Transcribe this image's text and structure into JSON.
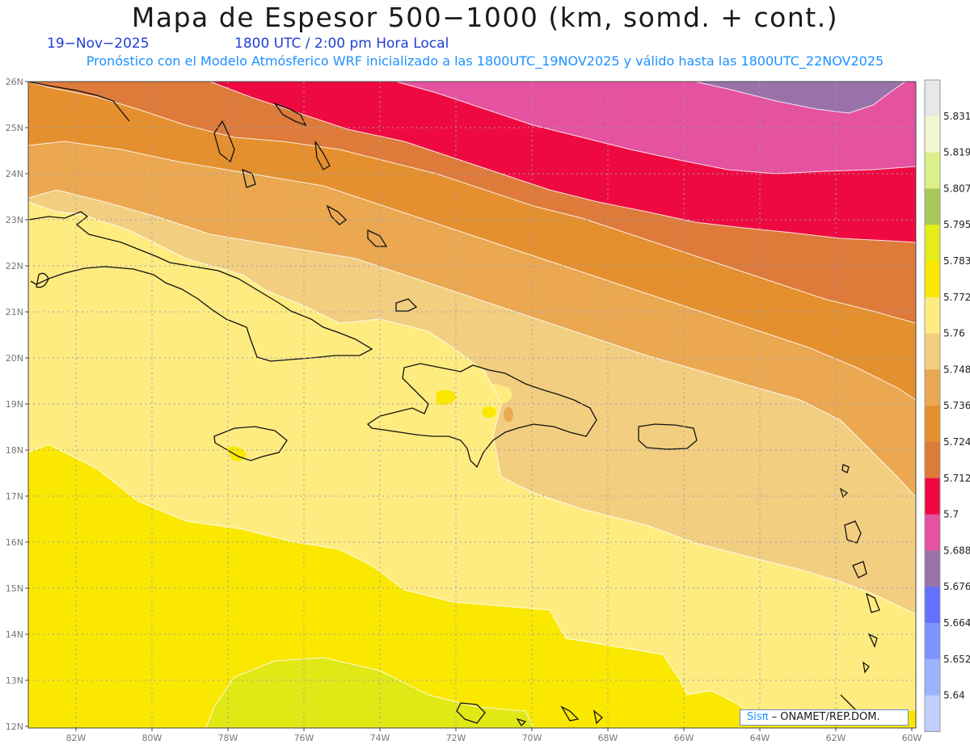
{
  "header": {
    "title": "Mapa de Espesor 500−1000 (km, somd. + cont.)",
    "date": "19−Nov−2025",
    "time": "1800 UTC / 2:00 pm Hora Local",
    "subtitle": "Pronóstico con el Modelo Atmósferico WRF inicializado a las 1800UTC_19NOV2025 y válido hasta las  1800UTC_22NOV2025"
  },
  "map": {
    "lon_labels": [
      "82W",
      "80W",
      "78W",
      "76W",
      "74W",
      "72W",
      "70W",
      "68W",
      "66W",
      "64W",
      "62W",
      "60W"
    ],
    "lat_labels": [
      "26N",
      "25N",
      "24N",
      "23N",
      "22N",
      "21N",
      "20N",
      "19N",
      "18N",
      "17N",
      "16N",
      "15N",
      "14N",
      "13N",
      "12N"
    ],
    "lon_range": [
      -83.2,
      -60
    ],
    "lat_range": [
      12,
      26
    ]
  },
  "colorbar": {
    "labels": [
      "5.831",
      "5.819",
      "5.807",
      "5.795",
      "5.783",
      "5.772",
      "5.76",
      "5.748",
      "5.736",
      "5.724",
      "5.712",
      "5.7",
      "5.688",
      "5.676",
      "5.664",
      "5.652",
      "5.64"
    ],
    "colors": [
      "#e8e8e8",
      "#f1f6cf",
      "#dcf08a",
      "#a8c95a",
      "#e4ec1a",
      "#fae800",
      "#ffec80",
      "#f2ce80",
      "#eba850",
      "#e5902e",
      "#de7a3a",
      "#ee0a40",
      "#e452a0",
      "#9a72aa",
      "#6470ff",
      "#7c94ff",
      "#9cb4ff",
      "#c0d0ff"
    ]
  },
  "credit": {
    "logo": "Sisπ",
    "text": "– ONAMET/REP.DOM."
  }
}
